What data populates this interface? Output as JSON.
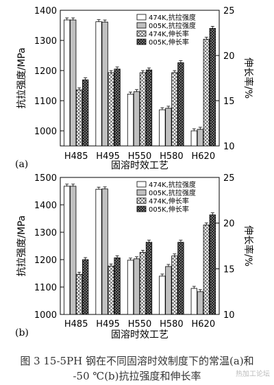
{
  "figure": {
    "caption_line1": "图 3   15-5PH 钢在不同固溶时效制度下的常温(a)和",
    "caption_line2": "-50 ℃(b)抗拉强度和伸长率",
    "watermark": "热加工论坛",
    "colors": {
      "tensile_474K": "#ffffff",
      "tensile_005K": "#c0c0c0",
      "elong_474K": "crosshatch-light",
      "elong_005K": "crosshatch-dark"
    }
  },
  "chart_data": [
    {
      "type": "bar",
      "panel_label": "(a)",
      "xlabel": "固溶时效工艺",
      "ylabel": "抗拉强度/MPa",
      "y2label": "伸长率/%",
      "categories": [
        "H485",
        "H495",
        "H550",
        "H580",
        "H620"
      ],
      "ylim": [
        950,
        1400
      ],
      "yticks": [
        1000,
        1100,
        1200,
        1300,
        1400
      ],
      "y2lim": [
        10,
        25
      ],
      "y2ticks": [
        10,
        15,
        20,
        25
      ],
      "legend_position": "top-right",
      "series": [
        {
          "name": "474K,抗拉强度",
          "axis": "left",
          "pattern": "white",
          "values": [
            1368,
            1362,
            1122,
            1070,
            1000
          ]
        },
        {
          "name": "005K,抗拉强度",
          "axis": "left",
          "pattern": "gray",
          "values": [
            1368,
            1361,
            1130,
            1075,
            1005
          ]
        },
        {
          "name": "474K,伸长率",
          "axis": "right",
          "pattern": "hatch-light",
          "values": [
            16.2,
            18.1,
            18.1,
            18.1,
            21.8
          ]
        },
        {
          "name": "005K,伸长率",
          "axis": "right",
          "pattern": "hatch-dark",
          "values": [
            17.3,
            18.5,
            18.4,
            19.2,
            23.0
          ]
        }
      ]
    },
    {
      "type": "bar",
      "panel_label": "(b)",
      "xlabel": "固溶时效工艺",
      "ylabel": "抗拉强度/MPa",
      "y2label": "伸长率/%",
      "categories": [
        "H485",
        "H495",
        "H550",
        "H580",
        "H620"
      ],
      "ylim": [
        1000,
        1500
      ],
      "yticks": [
        1000,
        1100,
        1200,
        1300,
        1400,
        1500
      ],
      "y2lim": [
        10,
        25
      ],
      "y2ticks": [
        10,
        15,
        20,
        25
      ],
      "legend_position": "top-right",
      "series": [
        {
          "name": "474K,抗拉强度",
          "axis": "left",
          "pattern": "white",
          "values": [
            1468,
            1457,
            1198,
            1140,
            1095
          ]
        },
        {
          "name": "005K,抗拉强度",
          "axis": "left",
          "pattern": "gray",
          "values": [
            1468,
            1458,
            1203,
            1175,
            1083
          ]
        },
        {
          "name": "474K,伸长率",
          "axis": "right",
          "pattern": "hatch-light",
          "values": [
            14.4,
            15.3,
            16.8,
            16.4,
            19.8
          ]
        },
        {
          "name": "005K,伸长率",
          "axis": "right",
          "pattern": "hatch-dark",
          "values": [
            16.0,
            16.2,
            17.9,
            17.9,
            20.9
          ]
        }
      ]
    }
  ]
}
